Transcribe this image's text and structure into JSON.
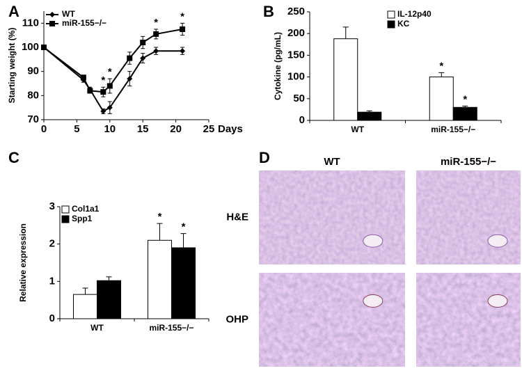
{
  "chart_data": [
    {
      "type": "line",
      "label": "A",
      "y_label": "Starting weight (%)",
      "x_label": "Days",
      "x": [
        0,
        6,
        7,
        9,
        10,
        13,
        15,
        17,
        21
      ],
      "series": [
        {
          "name": "WT",
          "color": "#000000",
          "marker": "diamond",
          "values": [
            100,
            86.5,
            82.5,
            73.5,
            75,
            87,
            95.5,
            98.5,
            98.5
          ],
          "errors": [
            0,
            1,
            1,
            1,
            2.5,
            3,
            2,
            1.5,
            1.5
          ]
        },
        {
          "name": "miR-155−/−",
          "color": "#000000",
          "marker": "square",
          "values": [
            100,
            87.5,
            82,
            81.5,
            84,
            95.5,
            102,
            105.5,
            107.5
          ],
          "errors": [
            0,
            1,
            1,
            2,
            3,
            2.5,
            2.5,
            2,
            2.5
          ],
          "significance": [
            null,
            null,
            null,
            "*",
            "*",
            null,
            null,
            "*",
            "*"
          ]
        }
      ],
      "xlim": [
        0,
        25
      ],
      "xticks": [
        0,
        5,
        10,
        15,
        20,
        25
      ],
      "ylim": [
        70,
        115
      ],
      "yticks": [
        70,
        80,
        90,
        100,
        110
      ],
      "legend": "top-left"
    },
    {
      "type": "bar",
      "label": "B",
      "y_label": "Cytokine (pg/mL)",
      "categories": [
        "WT",
        "miR-155−/−"
      ],
      "series": [
        {
          "name": "IL-12p40",
          "color": "#ffffff",
          "values": [
            188,
            100
          ],
          "errors": [
            27,
            10
          ],
          "significance": [
            null,
            "*"
          ]
        },
        {
          "name": "KC",
          "color": "#000000",
          "values": [
            19,
            30
          ],
          "errors": [
            3,
            3
          ],
          "significance": [
            null,
            "*"
          ]
        }
      ],
      "ylim": [
        0,
        250
      ],
      "yticks": [
        0,
        50,
        100,
        150,
        200,
        250
      ],
      "legend": "top-right"
    },
    {
      "type": "bar",
      "label": "C",
      "y_label": "Relative expression",
      "categories": [
        "WT",
        "miR-155−/−"
      ],
      "series": [
        {
          "name": "Col1a1",
          "color": "#ffffff",
          "values": [
            0.65,
            2.1
          ],
          "errors": [
            0.17,
            0.45
          ],
          "significance": [
            null,
            "*"
          ]
        },
        {
          "name": "Spp1",
          "color": "#000000",
          "values": [
            1.02,
            1.9
          ],
          "errors": [
            0.1,
            0.38
          ],
          "significance": [
            null,
            "*"
          ]
        }
      ],
      "ylim": [
        0,
        3
      ],
      "yticks": [
        0,
        1,
        2,
        3
      ],
      "legend": "top-left"
    },
    {
      "type": "image_grid",
      "label": "D",
      "columns": [
        "WT",
        "miR-155−/−"
      ],
      "rows": [
        "H&E",
        "OHP"
      ]
    }
  ]
}
